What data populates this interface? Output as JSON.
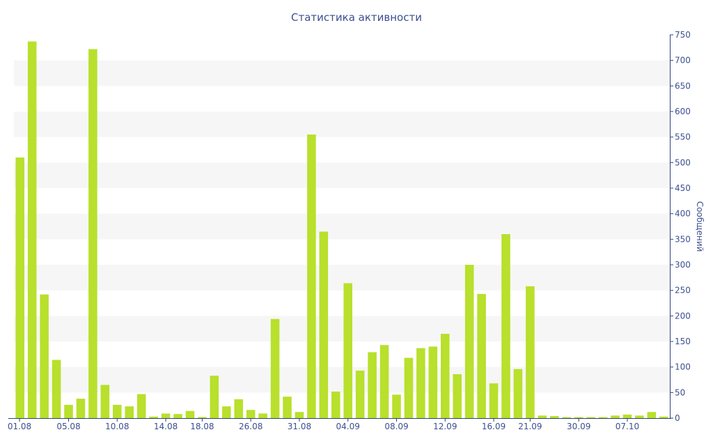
{
  "chart_data": {
    "type": "bar",
    "title": "Статистика активности",
    "xlabel": "",
    "ylabel": "Сообщений",
    "ylim": [
      0,
      750
    ],
    "y_ticks": [
      0,
      50,
      100,
      150,
      200,
      250,
      300,
      350,
      400,
      450,
      500,
      550,
      600,
      650,
      700,
      750
    ],
    "y_axis_side": "right",
    "x_tick_labels": [
      "01.08",
      "05.08",
      "10.08",
      "14.08",
      "18.08",
      "26.08",
      "31.08",
      "04.09",
      "08.09",
      "12.09",
      "16.09",
      "21.09",
      "30.09",
      "07.10"
    ],
    "grid": "horizontal alternating bands",
    "legend": "none",
    "colors": {
      "bar": "#b8e02c",
      "band": "#f6f6f6",
      "text": "#3c4f8f",
      "axis": "#2f3f7a"
    },
    "series": [
      {
        "values": [
          510,
          737,
          242,
          114,
          26,
          38,
          722,
          65,
          26,
          23,
          47,
          3,
          9,
          8,
          14,
          2,
          83,
          23,
          37,
          16,
          9,
          194,
          42,
          12,
          555,
          365,
          52,
          264,
          93,
          129,
          143,
          46,
          118,
          137,
          140,
          165,
          86,
          300,
          243,
          68,
          360,
          96,
          258,
          5,
          4,
          2,
          2,
          2,
          2,
          5,
          7,
          5,
          12,
          3
        ]
      }
    ]
  }
}
